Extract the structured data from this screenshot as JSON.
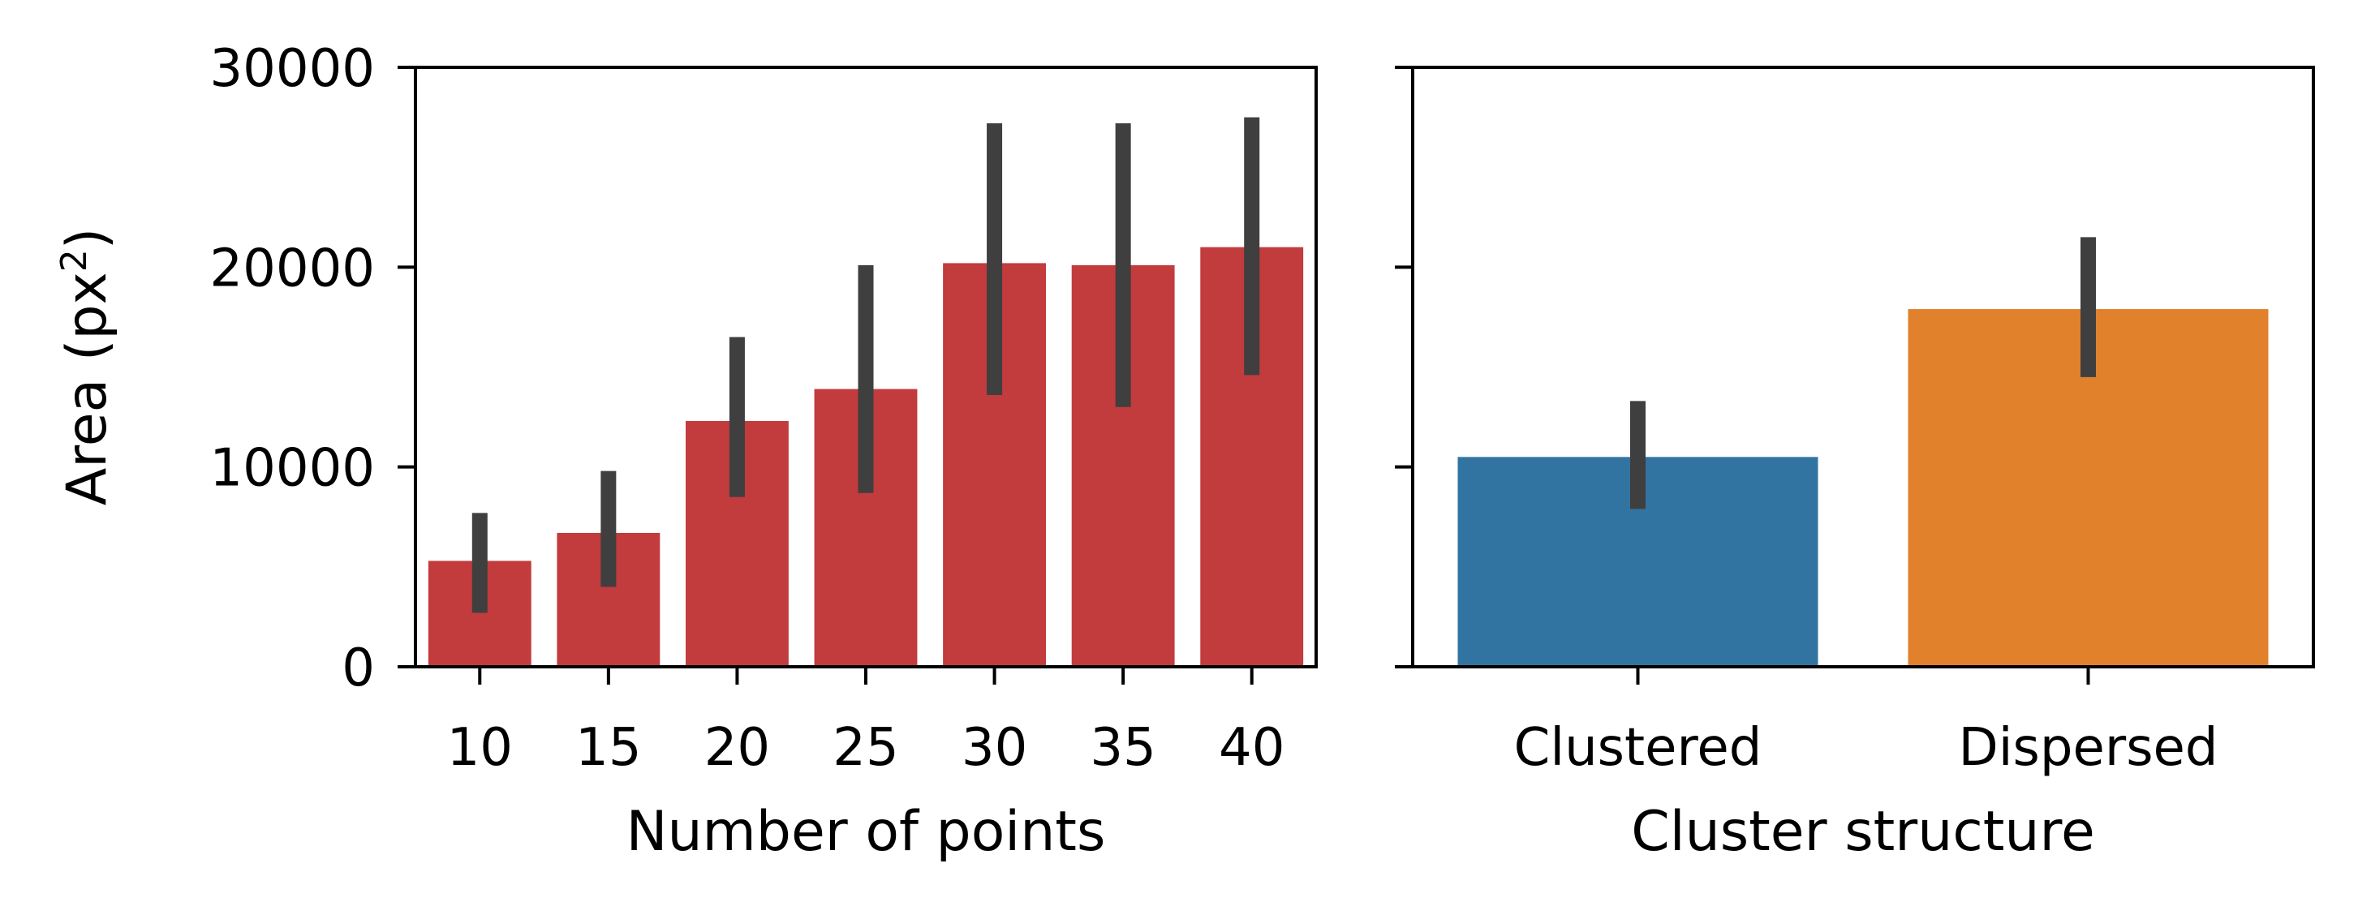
{
  "chart_data": [
    {
      "type": "bar",
      "categories": [
        "10",
        "15",
        "20",
        "25",
        "30",
        "35",
        "40"
      ],
      "values": [
        5300,
        6700,
        12300,
        13900,
        20200,
        20100,
        21000
      ],
      "error_low": [
        2700,
        4000,
        8500,
        8700,
        13600,
        13000,
        14600
      ],
      "error_high": [
        7700,
        9800,
        16500,
        20100,
        27200,
        27200,
        27500
      ],
      "xlabel": "Number of points",
      "ylabel_base": "Area (px",
      "ylabel_sup": "2",
      "ylabel_end": ")",
      "ylim": [
        0,
        30000
      ],
      "yticks": [
        0,
        10000,
        20000,
        30000
      ],
      "ytick_labels": [
        "0",
        "10000",
        "20000",
        "30000"
      ],
      "bar_color": "#c23b3d",
      "error_color": "#3f3f3f",
      "grid": false
    },
    {
      "type": "bar",
      "categories": [
        "Clustered",
        "Dispersed"
      ],
      "values": [
        10500,
        17900
      ],
      "error_low": [
        7900,
        14500
      ],
      "error_high": [
        13300,
        21500
      ],
      "xlabel": "Cluster structure",
      "ylim": [
        0,
        30000
      ],
      "yticks": [
        0,
        10000,
        20000,
        30000
      ],
      "bar_colors": [
        "#3274a1",
        "#e1812c"
      ],
      "error_color": "#3f3f3f",
      "grid": false,
      "shared_y": true
    }
  ]
}
